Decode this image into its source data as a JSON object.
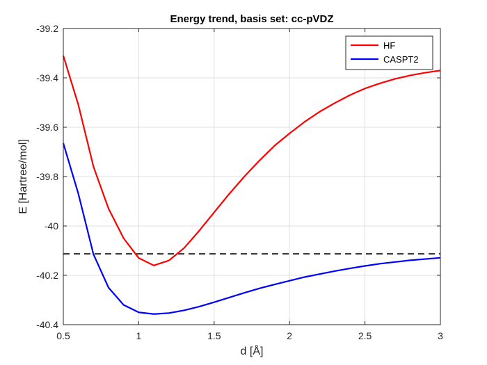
{
  "chart_data": {
    "type": "line",
    "title": "Energy trend, basis set: cc-pVDZ",
    "xlabel": "d [Å]",
    "ylabel": "E [Hartree/mol]",
    "xlim": [
      0.5,
      3
    ],
    "ylim": [
      -40.4,
      -39.2
    ],
    "xticks": [
      0.5,
      1,
      1.5,
      2,
      2.5,
      3
    ],
    "xtick_labels": [
      "0.5",
      "1",
      "1.5",
      "2",
      "2.5",
      "3"
    ],
    "yticks": [
      -39.2,
      -39.4,
      -39.6,
      -39.8,
      -40,
      -40.2,
      -40.4
    ],
    "ytick_labels": [
      "-39.2",
      "-39.4",
      "-39.6",
      "-39.8",
      "-40",
      "-40.2",
      "-40.4"
    ],
    "grid": true,
    "legend_position": "top-right",
    "series": [
      {
        "name": "HF",
        "color": "#ff0000",
        "x": [
          0.5,
          0.6,
          0.7,
          0.8,
          0.9,
          1.0,
          1.1,
          1.2,
          1.3,
          1.4,
          1.5,
          1.6,
          1.7,
          1.8,
          1.9,
          2.0,
          2.1,
          2.2,
          2.3,
          2.4,
          2.5,
          2.6,
          2.7,
          2.8,
          2.9,
          3.0
        ],
        "y": [
          -39.31,
          -39.51,
          -39.76,
          -39.93,
          -40.05,
          -40.13,
          -40.16,
          -40.14,
          -40.09,
          -40.02,
          -39.945,
          -39.87,
          -39.8,
          -39.735,
          -39.675,
          -39.625,
          -39.578,
          -39.537,
          -39.502,
          -39.47,
          -39.443,
          -39.422,
          -39.404,
          -39.39,
          -39.379,
          -39.37
        ]
      },
      {
        "name": "CASPT2",
        "color": "#0000ff",
        "x": [
          0.5,
          0.6,
          0.7,
          0.8,
          0.9,
          1.0,
          1.1,
          1.2,
          1.3,
          1.4,
          1.5,
          1.6,
          1.7,
          1.8,
          1.9,
          2.0,
          2.1,
          2.2,
          2.3,
          2.4,
          2.5,
          2.6,
          2.7,
          2.8,
          2.9,
          3.0
        ],
        "y": [
          -39.665,
          -39.87,
          -40.115,
          -40.25,
          -40.32,
          -40.35,
          -40.357,
          -40.353,
          -40.342,
          -40.327,
          -40.309,
          -40.29,
          -40.271,
          -40.253,
          -40.237,
          -40.222,
          -40.207,
          -40.195,
          -40.183,
          -40.172,
          -40.162,
          -40.153,
          -40.146,
          -40.139,
          -40.134,
          -40.129
        ]
      }
    ],
    "reference_line": {
      "y": -40.113,
      "color": "#404040",
      "style": "dashed"
    }
  }
}
